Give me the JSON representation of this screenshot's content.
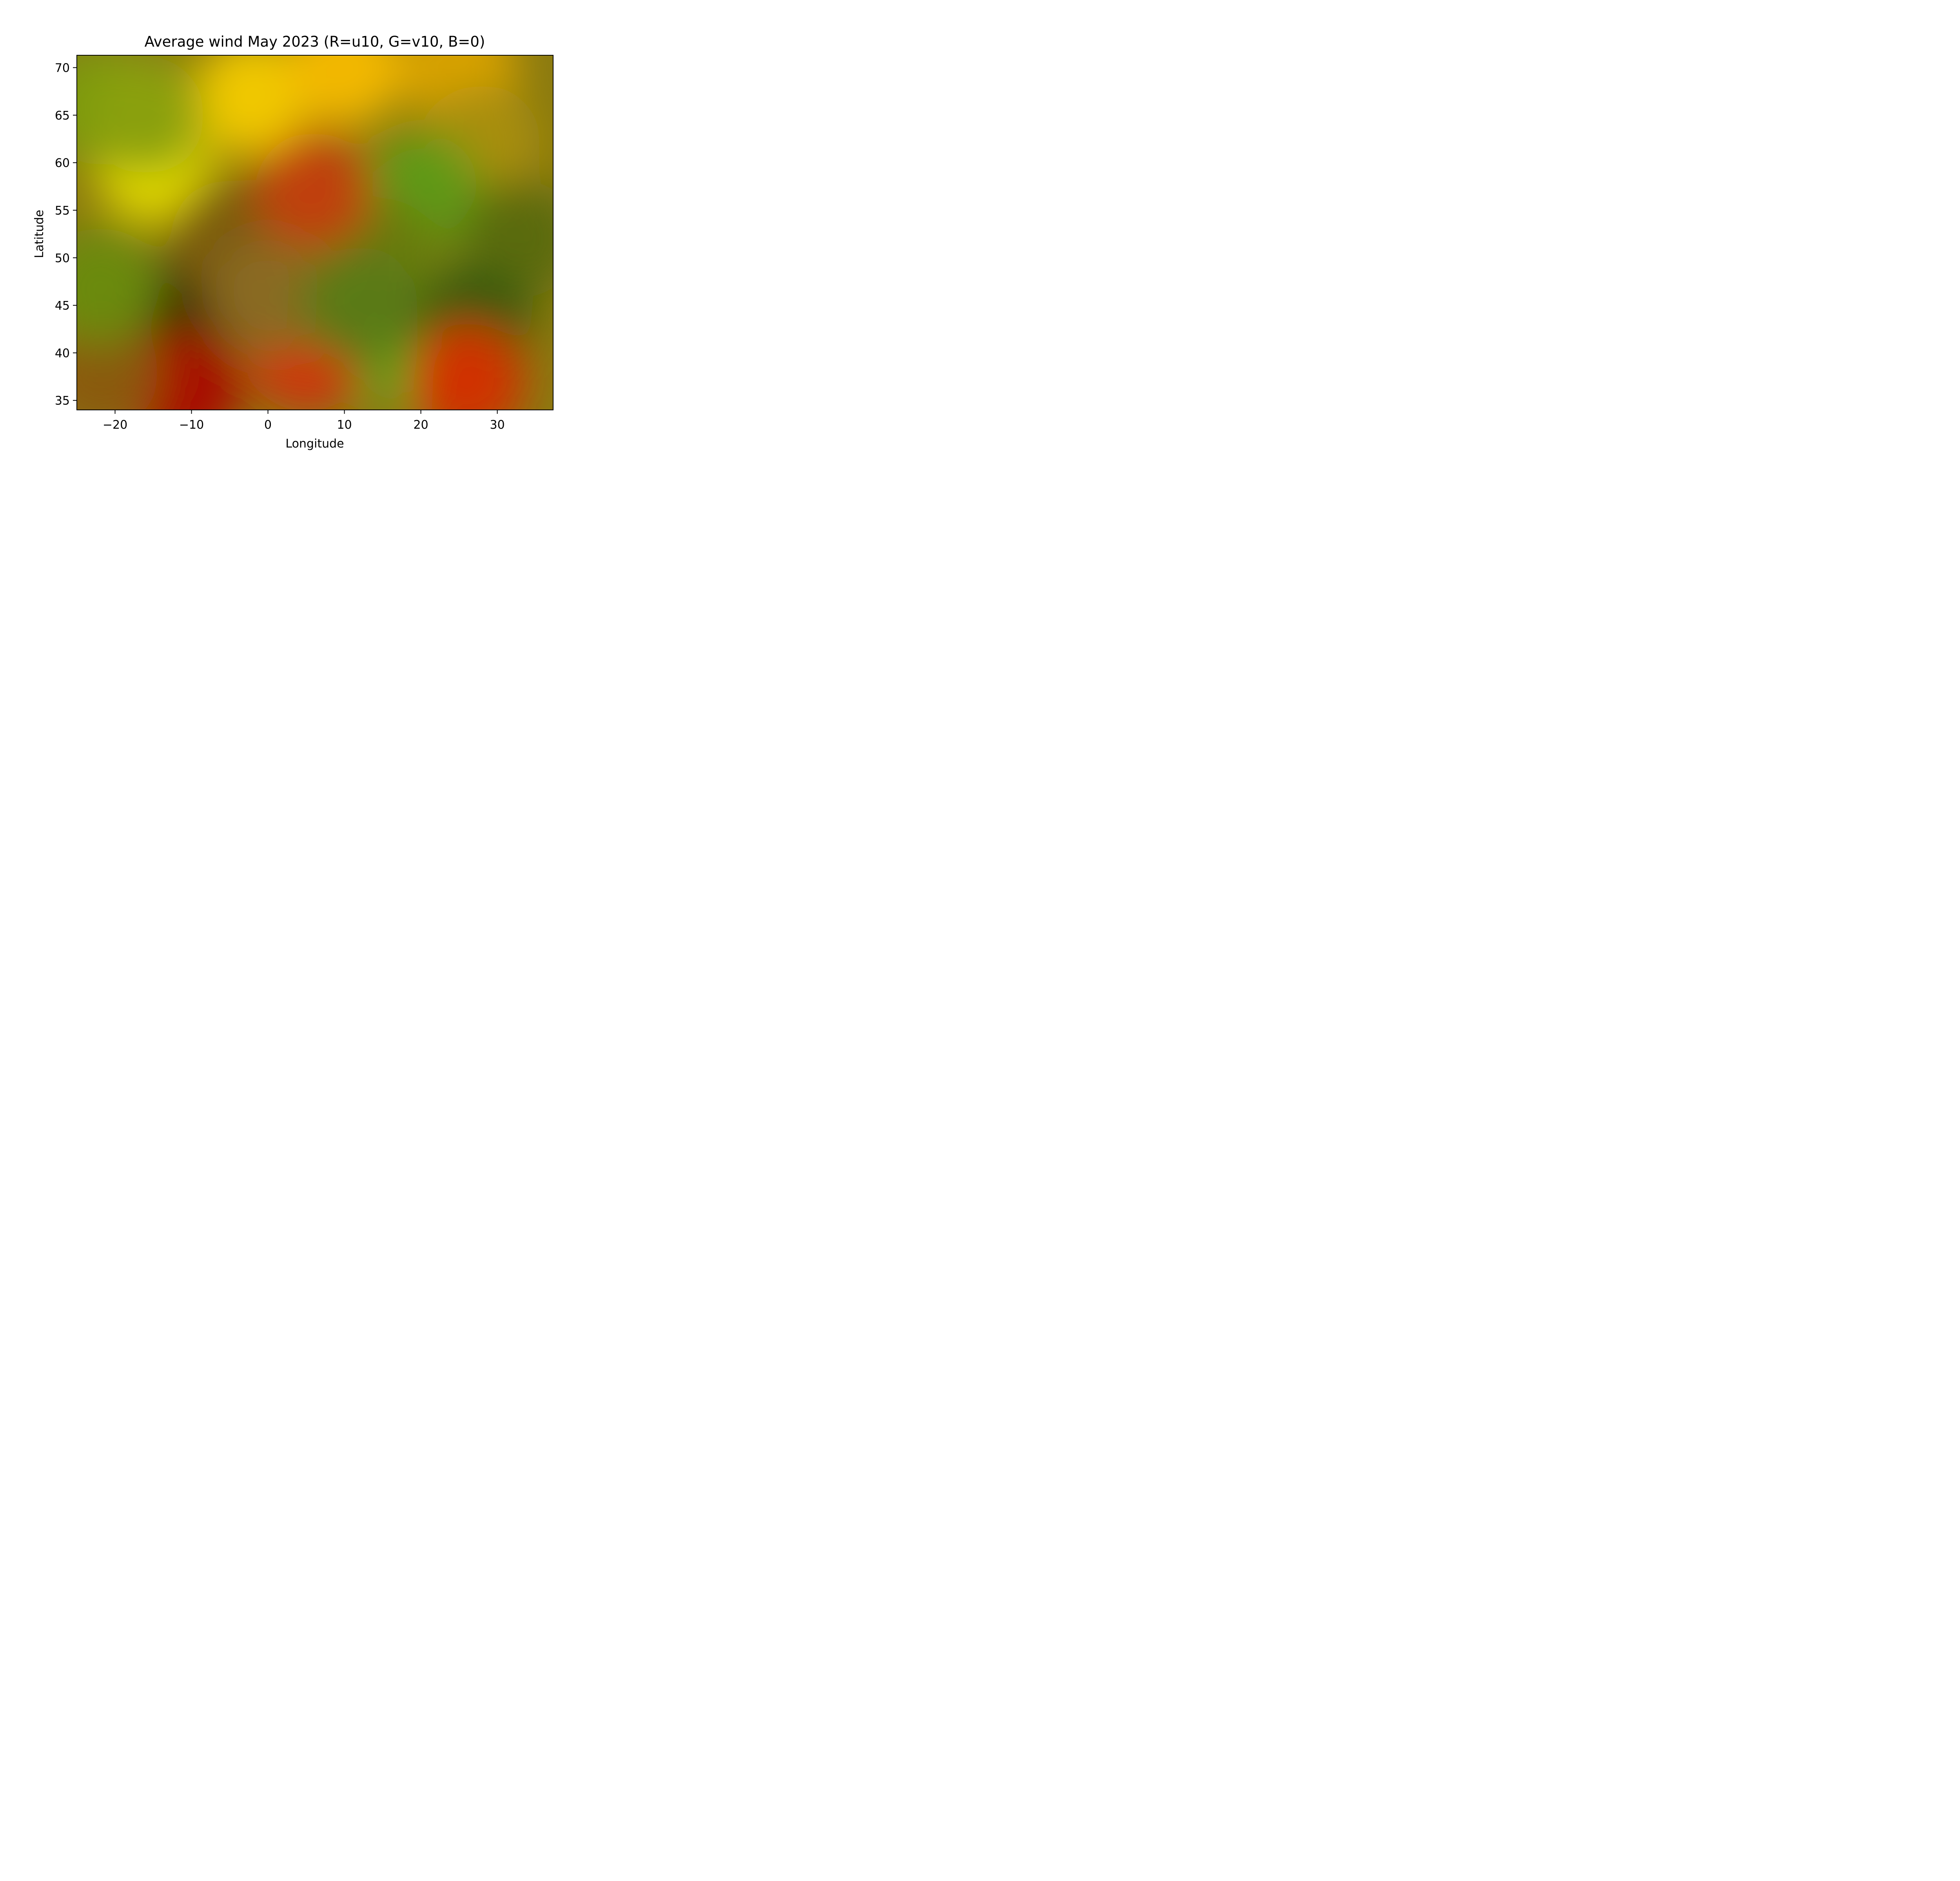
{
  "chart_data": {
    "type": "heatmap",
    "title": "Average wind May 2023 (R=u10, G=v10, B=0)",
    "xlabel": "Longitude",
    "ylabel": "Latitude",
    "xlim": [
      -25,
      37.3
    ],
    "ylim": [
      34,
      71.3
    ],
    "xticks": [
      {
        "value": -20,
        "label": "−20"
      },
      {
        "value": -10,
        "label": "−10"
      },
      {
        "value": 0,
        "label": "0"
      },
      {
        "value": 10,
        "label": "10"
      },
      {
        "value": 20,
        "label": "20"
      },
      {
        "value": 30,
        "label": "30"
      }
    ],
    "yticks": [
      {
        "value": 35,
        "label": "35"
      },
      {
        "value": 40,
        "label": "40"
      },
      {
        "value": 45,
        "label": "45"
      },
      {
        "value": 50,
        "label": "50"
      },
      {
        "value": 55,
        "label": "55"
      },
      {
        "value": 60,
        "label": "60"
      },
      {
        "value": 65,
        "label": "65"
      },
      {
        "value": 70,
        "label": "70"
      }
    ],
    "grid": false,
    "legend": "none",
    "base_color": "#8a7a10",
    "color_regions": [
      {
        "lon": -15,
        "lat": 60,
        "color": "#e6dc00"
      },
      {
        "lon": -2,
        "lat": 67,
        "color": "#f0c800"
      },
      {
        "lon": 10,
        "lat": 70,
        "color": "#f2b800"
      },
      {
        "lon": 25,
        "lat": 70,
        "color": "#d8a200"
      },
      {
        "lon": -22,
        "lat": 66,
        "color": "#7a9a10"
      },
      {
        "lon": -16,
        "lat": 65,
        "color": "#8aa010"
      },
      {
        "lon": 28,
        "lat": 62,
        "color": "#a88e10"
      },
      {
        "lon": 20,
        "lat": 57,
        "color": "#5f9a12"
      },
      {
        "lon": 15,
        "lat": 50,
        "color": "#6a7a10"
      },
      {
        "lon": 33,
        "lat": 52,
        "color": "#5a6a08"
      },
      {
        "lon": -10,
        "lat": 44,
        "color": "#3a3000"
      },
      {
        "lon": -5,
        "lat": 52,
        "color": "#7a5a10"
      },
      {
        "lon": 6,
        "lat": 57,
        "color": "#c04010"
      },
      {
        "lon": -11,
        "lat": 36,
        "color": "#a80800"
      },
      {
        "lon": 5,
        "lat": 40,
        "color": "#d03010"
      },
      {
        "lon": 20,
        "lat": 40,
        "color": "#4ea820"
      },
      {
        "lon": 27,
        "lat": 43,
        "color": "#355a08"
      },
      {
        "lon": 26,
        "lat": 37,
        "color": "#d03000"
      },
      {
        "lon": -22,
        "lat": 38,
        "color": "#8a5a10"
      },
      {
        "lon": 0,
        "lat": 46,
        "color": "#8a6a20"
      },
      {
        "lon": 12,
        "lat": 45,
        "color": "#5a7a12"
      },
      {
        "lon": -22,
        "lat": 47,
        "color": "#6a8a10"
      }
    ]
  }
}
